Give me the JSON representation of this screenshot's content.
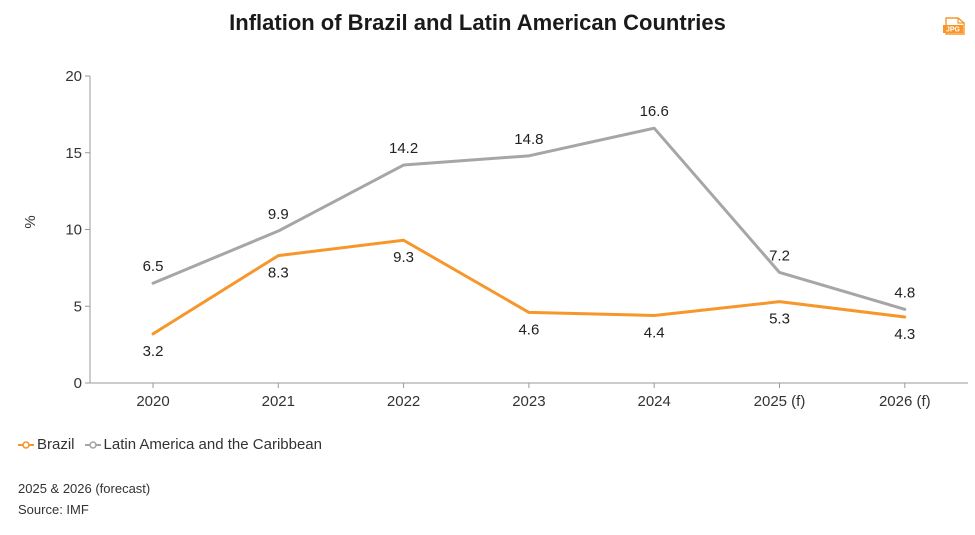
{
  "chart_data": {
    "type": "line",
    "title": "Inflation of Brazil and Latin American Countries",
    "ylabel": "%",
    "xlabel": "",
    "categories": [
      "2020",
      "2021",
      "2022",
      "2023",
      "2024",
      "2025 (f)",
      "2026 (f)"
    ],
    "ylim": [
      0,
      20
    ],
    "yticks": [
      0,
      5,
      10,
      15,
      20
    ],
    "grid": false,
    "legend_position": "bottom-left",
    "series": [
      {
        "name": "Brazil",
        "color": "#f7962b",
        "values": [
          3.2,
          8.3,
          9.3,
          4.6,
          4.4,
          5.3,
          4.3
        ],
        "labels": [
          "3.2",
          "8.3",
          "9.3",
          "4.6",
          "4.4",
          "5.3",
          "4.3"
        ]
      },
      {
        "name": "Latin America and the Caribbean",
        "color": "#a6a6a6",
        "values": [
          6.5,
          9.9,
          14.2,
          14.8,
          16.6,
          7.2,
          4.8
        ],
        "labels": [
          "6.5",
          "9.9",
          "14.2",
          "14.8",
          "16.6",
          "7.2",
          "4.8"
        ]
      }
    ]
  },
  "badge": {
    "text": "JPG",
    "color": "#f7962b",
    "icon": "jpg-file-icon"
  },
  "footnotes": {
    "forecast": "2025 & 2026 (forecast)",
    "source": "Source: IMF"
  }
}
